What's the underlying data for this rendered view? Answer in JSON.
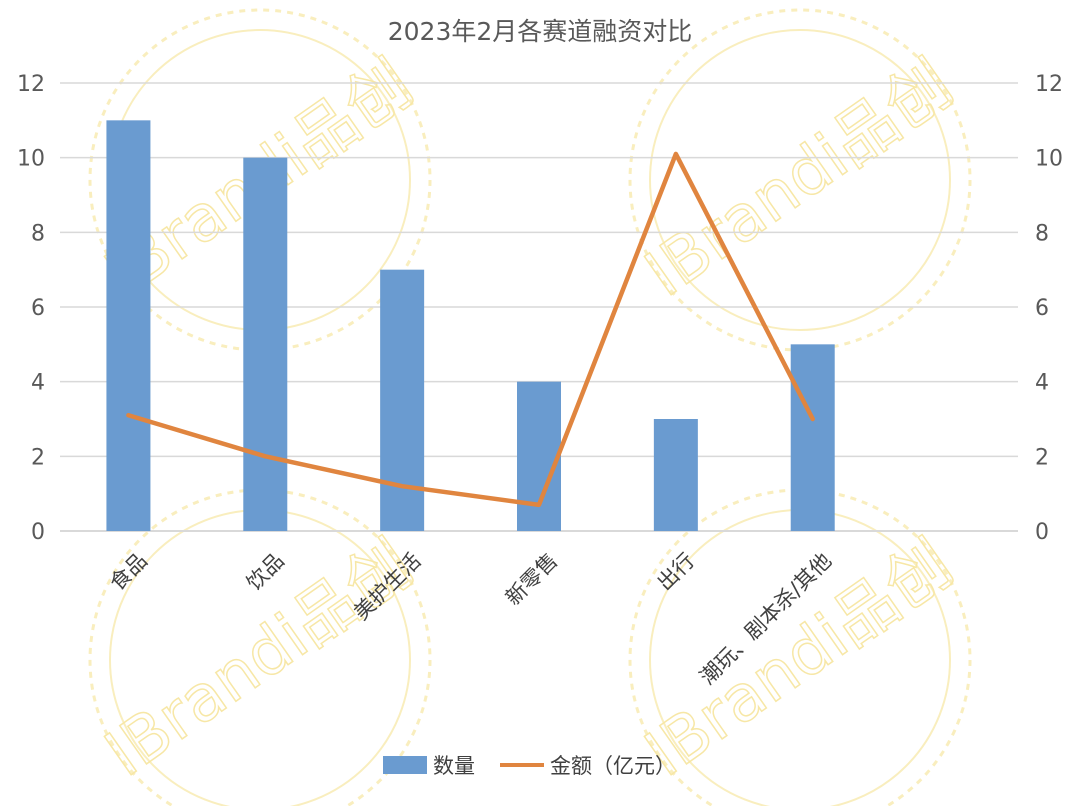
{
  "chart_data": {
    "type": "bar+line",
    "title": "2023年2月各赛道融资对比",
    "categories": [
      "食品",
      "饮品",
      "美护生活",
      "新零售",
      "出行",
      "潮玩、剧本杀/其他",
      ""
    ],
    "series": [
      {
        "name": "数量",
        "type": "bar",
        "axis": "left",
        "color": "#6a9bd0",
        "values": [
          11,
          10,
          7,
          4,
          3,
          5,
          null
        ]
      },
      {
        "name": "金额（亿元）",
        "type": "line",
        "axis": "right",
        "color": "#e0853f",
        "values": [
          3.1,
          2.0,
          1.2,
          0.7,
          10.1,
          3.0,
          null
        ]
      }
    ],
    "ylim_left": [
      0,
      12
    ],
    "ylim_right": [
      0,
      12
    ],
    "yticks": [
      0,
      2,
      4,
      6,
      8,
      10,
      12
    ],
    "grid": true,
    "legend": "bottom",
    "watermark": "IBrandi品创"
  }
}
